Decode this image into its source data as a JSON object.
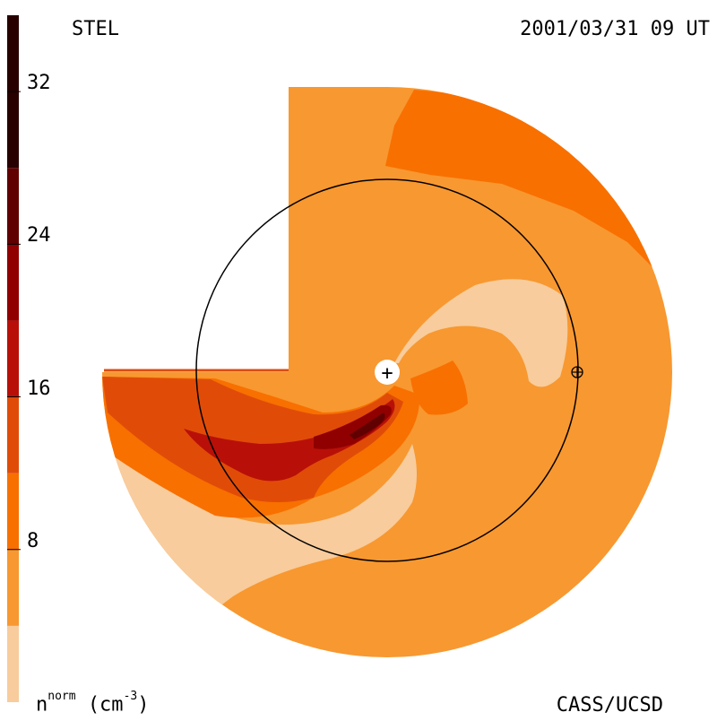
{
  "header": {
    "origin_label": "STEL",
    "timestamp": "2001/03/31 09 UT"
  },
  "footer": {
    "credit": "CASS/UCSD",
    "unit_symbol": "n",
    "unit_superscript": "norm",
    "unit_paren": "(cm",
    "unit_exp": "-3",
    "unit_close": ")"
  },
  "markers": {
    "sun_glyph": "+",
    "earth_glyph": "⊕"
  },
  "colors": {
    "level_0": "#f8cc9c",
    "level_1": "#f89830",
    "level_2": "#f87000",
    "level_3": "#e04c08",
    "level_4": "#b81008",
    "level_5": "#900000",
    "level_6": "#600000",
    "level_7": "#280000"
  },
  "chart_data": {
    "type": "heatmap",
    "colorbar": {
      "ticks": [
        "8",
        "16",
        "24",
        "32"
      ],
      "tick_values": [
        8,
        16,
        24,
        32
      ],
      "range": [
        0,
        36
      ],
      "bands": [
        {
          "from": 0,
          "to": 4,
          "color": "#f8cc9c"
        },
        {
          "from": 4,
          "to": 8,
          "color": "#f89830"
        },
        {
          "from": 8,
          "to": 12,
          "color": "#f87000"
        },
        {
          "from": 12,
          "to": 16,
          "color": "#e04c08"
        },
        {
          "from": 16,
          "to": 20,
          "color": "#b81008"
        },
        {
          "from": 20,
          "to": 24,
          "color": "#900000"
        },
        {
          "from": 24,
          "to": 28,
          "color": "#600000"
        },
        {
          "from": 28,
          "to": 36,
          "color": "#280000"
        }
      ]
    },
    "earth_orbit_radius_au": 1.0,
    "grid": false
  }
}
